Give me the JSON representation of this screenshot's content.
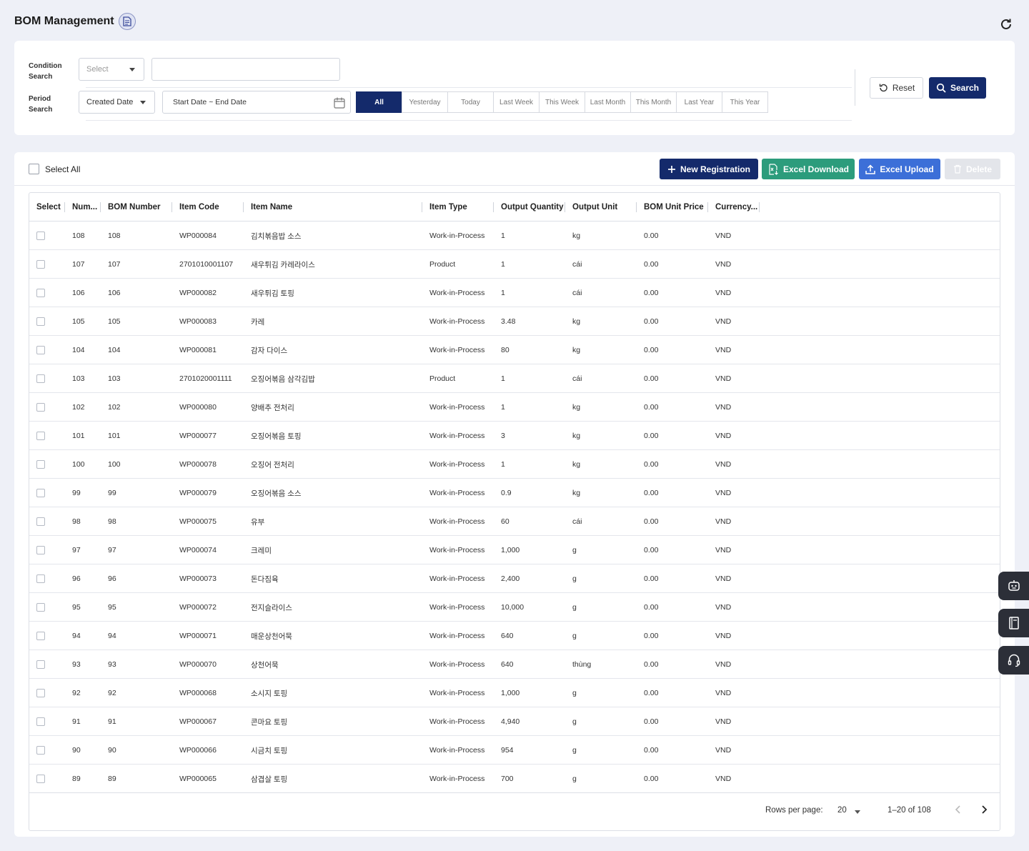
{
  "header": {
    "title": "BOM Management"
  },
  "search": {
    "condition_label_1": "Condition",
    "condition_label_2": "Search",
    "condition_select": "Select",
    "condition_input": "",
    "period_label_1": "Period",
    "period_label_2": "Search",
    "period_select": "Created Date",
    "date_range": "Start Date ~ End Date",
    "period_options": [
      "All",
      "Yesterday",
      "Today",
      "Last Week",
      "This Week",
      "Last Month",
      "This Month",
      "Last Year",
      "This Year"
    ],
    "active_period": "All",
    "reset_label": "Reset",
    "search_label": "Search"
  },
  "toolbar": {
    "select_all": "Select All",
    "new_registration": "New Registration",
    "excel_download": "Excel Download",
    "excel_upload": "Excel Upload",
    "delete": "Delete"
  },
  "table": {
    "columns": [
      "Select",
      "Num...",
      "BOM Number",
      "Item Code",
      "Item Name",
      "Item Type",
      "Output Quantity",
      "Output Unit",
      "BOM Unit Price",
      "Currency..."
    ],
    "rows": [
      [
        "108",
        "108",
        "WP000084",
        "김치볶음밥 소스",
        "Work-in-Process",
        "1",
        "kg",
        "0.00",
        "VND"
      ],
      [
        "107",
        "107",
        "2701010001107",
        "새우튀김 카레라이스",
        "Product",
        "1",
        "cái",
        "0.00",
        "VND"
      ],
      [
        "106",
        "106",
        "WP000082",
        "새우튀김 토핑",
        "Work-in-Process",
        "1",
        "cái",
        "0.00",
        "VND"
      ],
      [
        "105",
        "105",
        "WP000083",
        "카레",
        "Work-in-Process",
        "3.48",
        "kg",
        "0.00",
        "VND"
      ],
      [
        "104",
        "104",
        "WP000081",
        "감자 다이스",
        "Work-in-Process",
        "80",
        "kg",
        "0.00",
        "VND"
      ],
      [
        "103",
        "103",
        "2701020001111",
        "오징어볶음 삼각김밥",
        "Product",
        "1",
        "cái",
        "0.00",
        "VND"
      ],
      [
        "102",
        "102",
        "WP000080",
        "양배추 전처리",
        "Work-in-Process",
        "1",
        "kg",
        "0.00",
        "VND"
      ],
      [
        "101",
        "101",
        "WP000077",
        "오징어볶음 토핑",
        "Work-in-Process",
        "3",
        "kg",
        "0.00",
        "VND"
      ],
      [
        "100",
        "100",
        "WP000078",
        "오징어 전처리",
        "Work-in-Process",
        "1",
        "kg",
        "0.00",
        "VND"
      ],
      [
        "99",
        "99",
        "WP000079",
        "오징어볶음 소스",
        "Work-in-Process",
        "0.9",
        "kg",
        "0.00",
        "VND"
      ],
      [
        "98",
        "98",
        "WP000075",
        "유부",
        "Work-in-Process",
        "60",
        "cái",
        "0.00",
        "VND"
      ],
      [
        "97",
        "97",
        "WP000074",
        "크레미",
        "Work-in-Process",
        "1,000",
        "g",
        "0.00",
        "VND"
      ],
      [
        "96",
        "96",
        "WP000073",
        "돈다짐육",
        "Work-in-Process",
        "2,400",
        "g",
        "0.00",
        "VND"
      ],
      [
        "95",
        "95",
        "WP000072",
        "전지슬라이스",
        "Work-in-Process",
        "10,000",
        "g",
        "0.00",
        "VND"
      ],
      [
        "94",
        "94",
        "WP000071",
        "매운상천어묵",
        "Work-in-Process",
        "640",
        "g",
        "0.00",
        "VND"
      ],
      [
        "93",
        "93",
        "WP000070",
        "상천어묵",
        "Work-in-Process",
        "640",
        "thùng",
        "0.00",
        "VND"
      ],
      [
        "92",
        "92",
        "WP000068",
        "소시지 토핑",
        "Work-in-Process",
        "1,000",
        "g",
        "0.00",
        "VND"
      ],
      [
        "91",
        "91",
        "WP000067",
        "콘마요 토핑",
        "Work-in-Process",
        "4,940",
        "g",
        "0.00",
        "VND"
      ],
      [
        "90",
        "90",
        "WP000066",
        "시금치 토핑",
        "Work-in-Process",
        "954",
        "g",
        "0.00",
        "VND"
      ],
      [
        "89",
        "89",
        "WP000065",
        "삼겹살 토핑",
        "Work-in-Process",
        "700",
        "g",
        "0.00",
        "VND"
      ]
    ]
  },
  "pagination": {
    "rows_per_page_label": "Rows per page:",
    "rows_per_page": "20",
    "range": "1–20 of 108"
  },
  "colors": {
    "primary": "#142a6b",
    "excel_green": "#2c9c7c",
    "upload_blue": "#3c6fd8",
    "background": "#eef0f7"
  }
}
